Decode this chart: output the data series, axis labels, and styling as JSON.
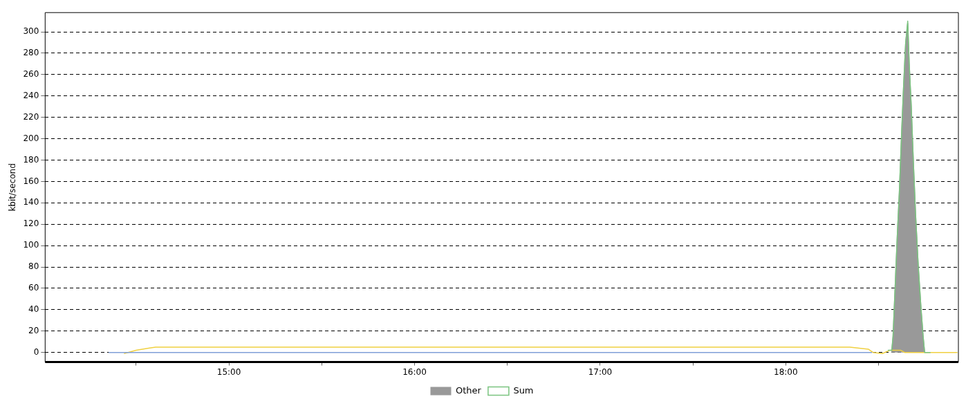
{
  "chart_data": {
    "type": "line",
    "ylabel": "kbit/second",
    "xlim": [
      14.01,
      18.93
    ],
    "ylim": [
      -9,
      318
    ],
    "xticks": [
      {
        "value": 14.5,
        "label": null
      },
      {
        "value": 15,
        "label": "15:00"
      },
      {
        "value": 15.5,
        "label": null
      },
      {
        "value": 16,
        "label": "16:00"
      },
      {
        "value": 16.5,
        "label": null
      },
      {
        "value": 17,
        "label": "17:00"
      },
      {
        "value": 17.5,
        "label": null
      },
      {
        "value": 18,
        "label": "18:00"
      },
      {
        "value": 18.5,
        "label": null
      }
    ],
    "yticks": [
      0,
      20,
      40,
      60,
      80,
      100,
      120,
      140,
      160,
      180,
      200,
      220,
      240,
      260,
      280,
      300
    ],
    "grid": "y",
    "legend": "bottom",
    "marker": "none",
    "line_style": "solid",
    "series": [
      {
        "name": "Other",
        "type": "area",
        "color": "#999999",
        "x": [
          18.571,
          18.578,
          18.589,
          18.601,
          18.612,
          18.623,
          18.635,
          18.646,
          18.657,
          18.665,
          18.676,
          18.687,
          18.699,
          18.714,
          18.729,
          18.74,
          18.748
        ],
        "values": [
          0,
          15,
          60,
          110,
          150,
          200,
          250,
          290,
          308,
          270,
          230,
          180,
          130,
          80,
          40,
          15,
          0
        ]
      },
      {
        "name": "Sum",
        "type": "line",
        "color": "#7ac47f",
        "x": [
          18.55,
          18.571,
          18.578,
          18.589,
          18.601,
          18.612,
          18.623,
          18.635,
          18.646,
          18.657,
          18.665,
          18.676,
          18.687,
          18.699,
          18.714,
          18.729,
          18.74,
          18.748,
          18.78
        ],
        "values": [
          2,
          2,
          15,
          60,
          110,
          150,
          200,
          250,
          290,
          310,
          270,
          230,
          180,
          130,
          80,
          40,
          15,
          0,
          0
        ]
      },
      {
        "type": "line",
        "color": "#7f9ed8",
        "x": [
          14.352,
          18.465
        ],
        "values": [
          0,
          0
        ]
      },
      {
        "type": "line",
        "color": "#f0d040",
        "x": [
          14.435,
          14.5,
          14.567,
          14.605,
          18.345,
          18.446,
          18.47,
          18.52,
          18.56,
          18.62,
          18.64,
          18.925
        ],
        "values": [
          -1,
          2,
          4,
          5,
          5,
          3,
          0,
          -1,
          2,
          2,
          0,
          0
        ]
      }
    ]
  }
}
